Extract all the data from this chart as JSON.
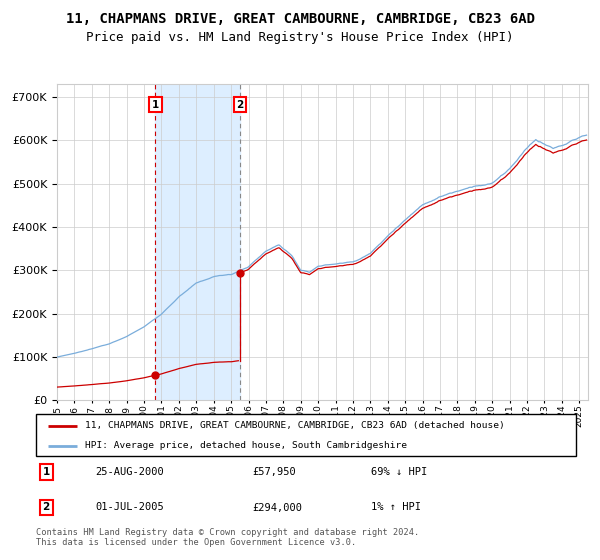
{
  "title": "11, CHAPMANS DRIVE, GREAT CAMBOURNE, CAMBRIDGE, CB23 6AD",
  "subtitle": "Price paid vs. HM Land Registry's House Price Index (HPI)",
  "ylim": [
    0,
    730000
  ],
  "yticks": [
    0,
    100000,
    200000,
    300000,
    400000,
    500000,
    600000,
    700000
  ],
  "xlim_start": 1995.0,
  "xlim_end": 2025.5,
  "hpi_color": "#7aaddb",
  "price_color": "#cc0000",
  "sale1_date": 2000.646,
  "sale1_price": 57950,
  "sale2_date": 2005.498,
  "sale2_price": 294000,
  "annotation1_label": "25-AUG-2000",
  "annotation1_price": "£57,950",
  "annotation1_hpi": "69% ↓ HPI",
  "annotation2_label": "01-JUL-2005",
  "annotation2_price": "£294,000",
  "annotation2_hpi": "1% ↑ HPI",
  "legend_line1": "11, CHAPMANS DRIVE, GREAT CAMBOURNE, CAMBRIDGE, CB23 6AD (detached house)",
  "legend_line2": "HPI: Average price, detached house, South Cambridgeshire",
  "footer": "Contains HM Land Registry data © Crown copyright and database right 2024.\nThis data is licensed under the Open Government Licence v3.0.",
  "background_color": "#ffffff",
  "grid_color": "#cccccc",
  "shade_color": "#ddeeff",
  "title_fontsize": 10,
  "subtitle_fontsize": 9,
  "tick_fontsize": 8
}
